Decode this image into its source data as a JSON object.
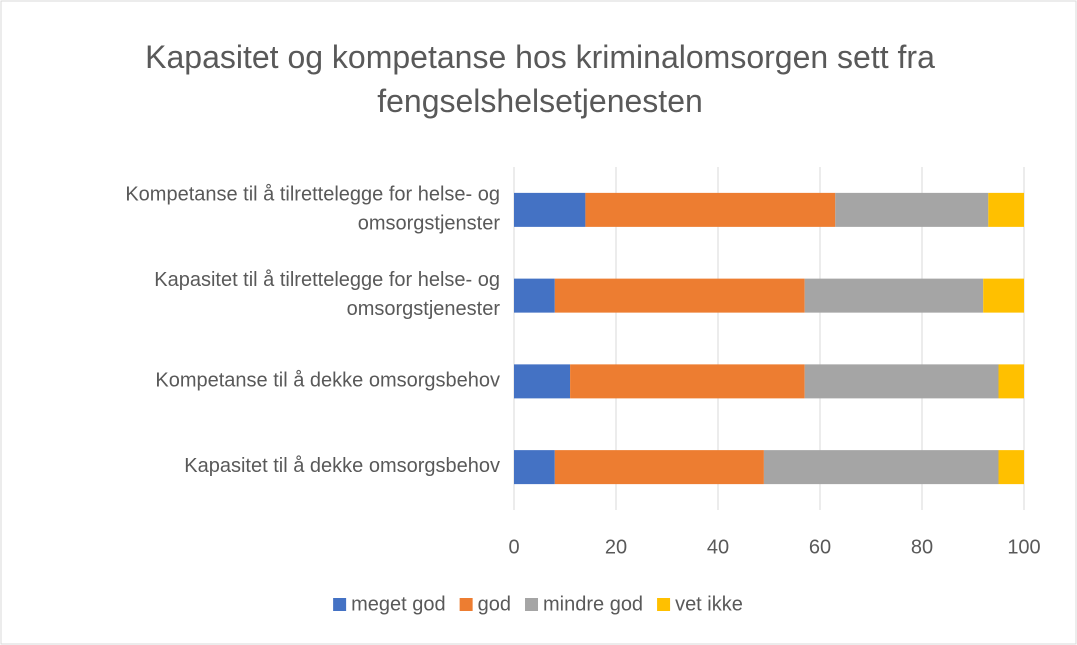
{
  "chart_data": {
    "type": "stacked_barh",
    "title": "Kapasitet og kompetanse hos kriminalomsorgen sett fra fengselshelsetjenesten",
    "categories": [
      "Kompetanse til å tilrettelegge for helse- og omsorgstjenster",
      "Kapasitet til å tilrettelegge for helse- og omsorgstjenester",
      "Kompetanse til å dekke omsorgsbehov",
      "Kapasitet til å dekke omsorgsbehov"
    ],
    "series": [
      {
        "name": "meget god",
        "color": "#4472c4",
        "values": [
          14,
          8,
          11,
          8
        ]
      },
      {
        "name": "god",
        "color": "#ed7d31",
        "values": [
          49,
          49,
          46,
          41
        ]
      },
      {
        "name": "mindre god",
        "color": "#a5a5a5",
        "values": [
          30,
          35,
          38,
          46
        ]
      },
      {
        "name": "vet ikke",
        "color": "#ffc000",
        "values": [
          7,
          8,
          5,
          5
        ]
      }
    ],
    "xlim": [
      0,
      100
    ],
    "xticks": [
      0,
      20,
      40,
      60,
      80,
      100
    ],
    "grid": true,
    "legend": "bottom"
  }
}
